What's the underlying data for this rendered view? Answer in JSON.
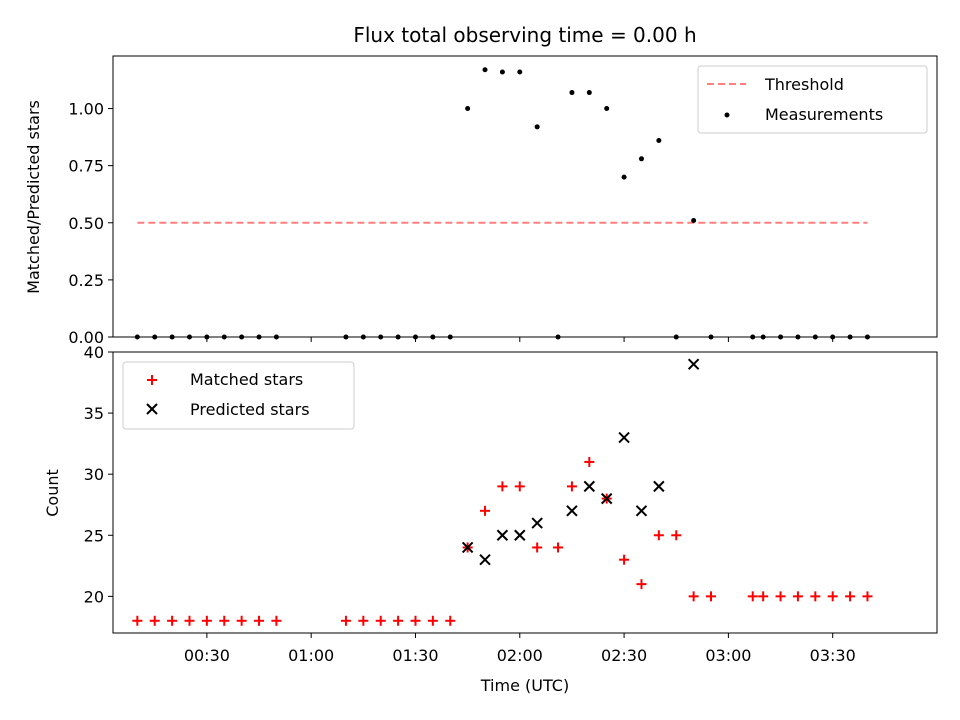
{
  "chart_data": [
    {
      "type": "scatter",
      "title": "Flux total observing time = 0.00 h",
      "xlabel": "",
      "ylabel": "Matched/Predicted stars",
      "xlim": [
        "00:03",
        "04:00"
      ],
      "ylim": [
        0,
        1.23
      ],
      "yticks": [
        "0.00",
        "0.25",
        "0.50",
        "0.75",
        "1.00"
      ],
      "legend_position": "top-right",
      "threshold": {
        "name": "Threshold",
        "color": "#ff7f7f",
        "style": "dashed",
        "value": 0.5,
        "x_range": [
          "00:10",
          "03:40"
        ]
      },
      "series": [
        {
          "name": "Measurements",
          "color": "#000000",
          "marker": "dot",
          "points": [
            [
              "00:10",
              0
            ],
            [
              "00:15",
              0
            ],
            [
              "00:20",
              0
            ],
            [
              "00:25",
              0
            ],
            [
              "00:30",
              0
            ],
            [
              "00:35",
              0
            ],
            [
              "00:40",
              0
            ],
            [
              "00:45",
              0
            ],
            [
              "00:50",
              0
            ],
            [
              "01:10",
              0
            ],
            [
              "01:15",
              0
            ],
            [
              "01:20",
              0
            ],
            [
              "01:25",
              0
            ],
            [
              "01:30",
              0
            ],
            [
              "01:35",
              0
            ],
            [
              "01:40",
              0
            ],
            [
              "01:45",
              1.0
            ],
            [
              "01:50",
              1.17
            ],
            [
              "01:55",
              1.16
            ],
            [
              "02:00",
              1.16
            ],
            [
              "02:05",
              0.92
            ],
            [
              "02:11",
              0
            ],
            [
              "02:15",
              1.07
            ],
            [
              "02:20",
              1.07
            ],
            [
              "02:25",
              1.0
            ],
            [
              "02:30",
              0.7
            ],
            [
              "02:35",
              0.78
            ],
            [
              "02:40",
              0.86
            ],
            [
              "02:45",
              0
            ],
            [
              "02:50",
              0.51
            ],
            [
              "02:55",
              0
            ],
            [
              "03:07",
              0
            ],
            [
              "03:10",
              0
            ],
            [
              "03:15",
              0
            ],
            [
              "03:20",
              0
            ],
            [
              "03:25",
              0
            ],
            [
              "03:30",
              0
            ],
            [
              "03:35",
              0
            ],
            [
              "03:40",
              0
            ]
          ]
        }
      ]
    },
    {
      "type": "scatter",
      "title": "",
      "xlabel": "Time (UTC)",
      "ylabel": "Count",
      "xlim": [
        "00:03",
        "04:00"
      ],
      "ylim": [
        17,
        40
      ],
      "yticks": [
        "20",
        "25",
        "30",
        "35",
        "40"
      ],
      "xticks": [
        "00:30",
        "01:00",
        "01:30",
        "02:00",
        "02:30",
        "03:00",
        "03:30"
      ],
      "legend_position": "top-left",
      "series": [
        {
          "name": "Matched stars",
          "color": "#ff0000",
          "marker": "plus",
          "points": [
            [
              "00:10",
              18
            ],
            [
              "00:15",
              18
            ],
            [
              "00:20",
              18
            ],
            [
              "00:25",
              18
            ],
            [
              "00:30",
              18
            ],
            [
              "00:35",
              18
            ],
            [
              "00:40",
              18
            ],
            [
              "00:45",
              18
            ],
            [
              "00:50",
              18
            ],
            [
              "01:10",
              18
            ],
            [
              "01:15",
              18
            ],
            [
              "01:20",
              18
            ],
            [
              "01:25",
              18
            ],
            [
              "01:30",
              18
            ],
            [
              "01:35",
              18
            ],
            [
              "01:40",
              18
            ],
            [
              "01:45",
              24
            ],
            [
              "01:50",
              27
            ],
            [
              "01:55",
              29
            ],
            [
              "02:00",
              29
            ],
            [
              "02:05",
              24
            ],
            [
              "02:11",
              24
            ],
            [
              "02:15",
              29
            ],
            [
              "02:20",
              31
            ],
            [
              "02:25",
              28
            ],
            [
              "02:30",
              23
            ],
            [
              "02:35",
              21
            ],
            [
              "02:40",
              25
            ],
            [
              "02:45",
              25
            ],
            [
              "02:50",
              20
            ],
            [
              "02:55",
              20
            ],
            [
              "03:07",
              20
            ],
            [
              "03:10",
              20
            ],
            [
              "03:15",
              20
            ],
            [
              "03:20",
              20
            ],
            [
              "03:25",
              20
            ],
            [
              "03:30",
              20
            ],
            [
              "03:35",
              20
            ],
            [
              "03:40",
              20
            ]
          ]
        },
        {
          "name": "Predicted stars",
          "color": "#000000",
          "marker": "x",
          "points": [
            [
              "01:45",
              24
            ],
            [
              "01:50",
              23
            ],
            [
              "01:55",
              25
            ],
            [
              "02:00",
              25
            ],
            [
              "02:05",
              26
            ],
            [
              "02:15",
              27
            ],
            [
              "02:20",
              29
            ],
            [
              "02:25",
              28
            ],
            [
              "02:30",
              33
            ],
            [
              "02:35",
              27
            ],
            [
              "02:40",
              29
            ],
            [
              "02:50",
              39
            ]
          ]
        }
      ]
    }
  ]
}
